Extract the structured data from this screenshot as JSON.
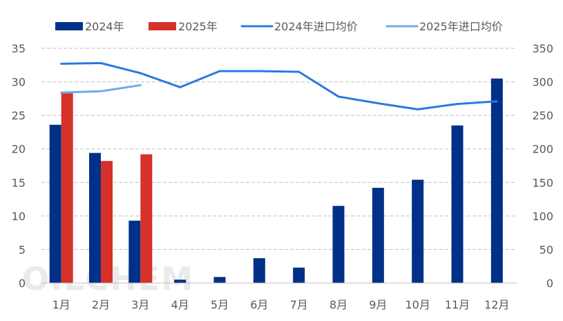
{
  "chart_data": {
    "type": "bar",
    "title": "",
    "categories": [
      "1月",
      "2月",
      "3月",
      "4月",
      "5月",
      "6月",
      "7月",
      "8月",
      "9月",
      "10月",
      "11月",
      "12月"
    ],
    "series": [
      {
        "name": "2024年",
        "kind": "bar",
        "axis": "left",
        "color": "#003087",
        "values": [
          23.6,
          19.4,
          9.3,
          0.5,
          0.9,
          3.7,
          2.3,
          11.5,
          14.2,
          15.4,
          23.5,
          30.5
        ]
      },
      {
        "name": "2025年",
        "kind": "bar",
        "axis": "left",
        "color": "#d6312a",
        "values": [
          28.3,
          18.2,
          19.2,
          null,
          null,
          null,
          null,
          null,
          null,
          null,
          null,
          null
        ]
      },
      {
        "name": "2024年进口均价",
        "kind": "line",
        "axis": "right",
        "color": "#2979e0",
        "values": [
          327,
          328,
          313,
          292,
          316,
          316,
          315,
          278,
          268,
          259,
          267,
          271
        ]
      },
      {
        "name": "2025年进口均价",
        "kind": "line",
        "axis": "right",
        "color": "#6fa8ec",
        "values": [
          284,
          286,
          295,
          null,
          null,
          null,
          null,
          null,
          null,
          null,
          null,
          null
        ]
      }
    ],
    "y_left": {
      "min": 0,
      "max": 35,
      "ticks": [
        0,
        5,
        10,
        15,
        20,
        25,
        30,
        35
      ]
    },
    "y_right": {
      "min": 0,
      "max": 350,
      "ticks": [
        0,
        50,
        100,
        150,
        200,
        250,
        300,
        350
      ]
    },
    "grid": true,
    "legend_position": "top",
    "watermark": "OILCHEM"
  }
}
